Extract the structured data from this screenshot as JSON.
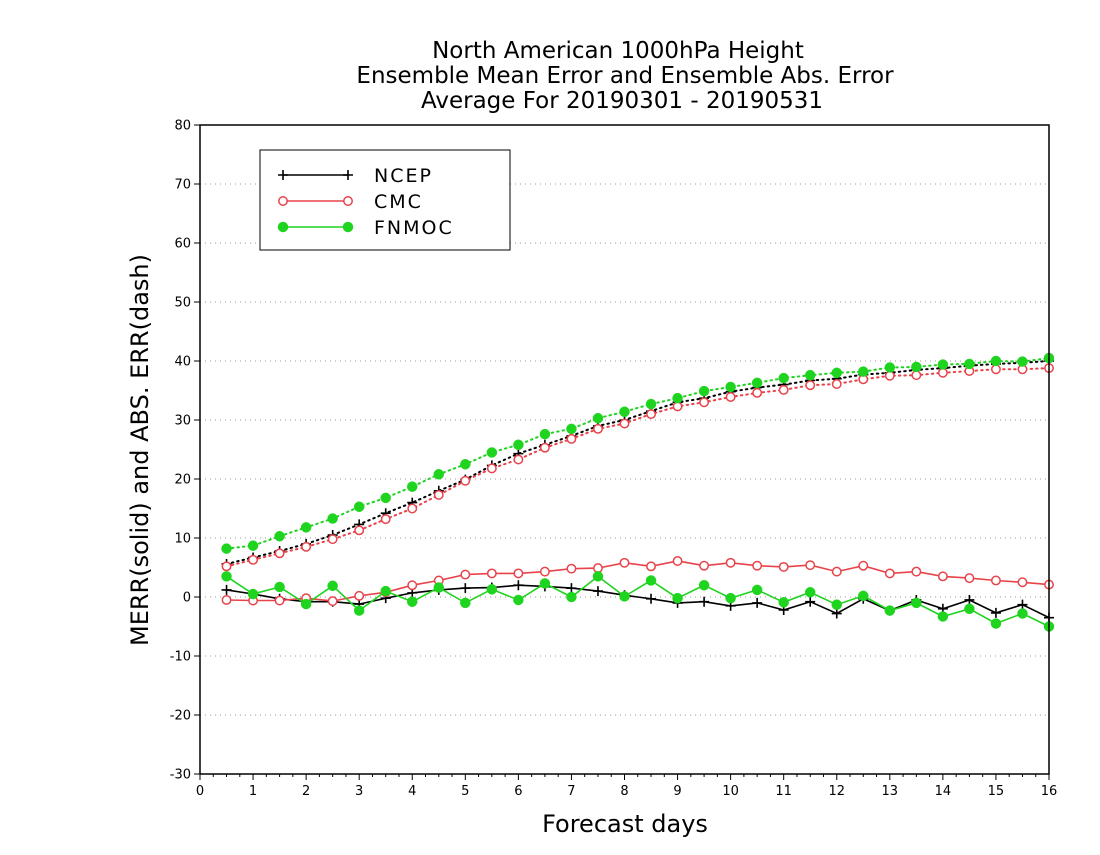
{
  "chart_data": {
    "type": "line",
    "title": [
      "North American 1000hPa Height",
      "Ensemble Mean Error and Ensemble Abs. Error",
      "Average For 20190301 - 20190531"
    ],
    "xlabel": "Forecast days",
    "ylabel": "MERR(solid) and ABS. ERR(dash)",
    "xlim": [
      0,
      16
    ],
    "ylim": [
      -30,
      80
    ],
    "xticks": [
      "0",
      "1",
      "2",
      "3",
      "4",
      "5",
      "6",
      "7",
      "8",
      "9",
      "10",
      "11",
      "12",
      "13",
      "14",
      "15",
      "16"
    ],
    "yticks": [
      "-30",
      "-20",
      "-10",
      "0",
      "10",
      "20",
      "30",
      "40",
      "50",
      "60",
      "70",
      "80"
    ],
    "grid": "horizontal dotted",
    "legend": {
      "placement": "top-left",
      "entries": [
        {
          "name": "NCEP",
          "color": "#000000",
          "marker": "plus"
        },
        {
          "name": "CMC",
          "color": "#e8434a",
          "marker": "open-circle"
        },
        {
          "name": "FNMOC",
          "color": "#1ed41e",
          "marker": "filled-circle"
        }
      ]
    },
    "x": [
      0.5,
      1,
      1.5,
      2,
      2.5,
      3,
      3.5,
      4,
      4.5,
      5,
      5.5,
      6,
      6.5,
      7,
      7.5,
      8,
      8.5,
      9,
      9.5,
      10,
      10.5,
      11,
      11.5,
      12,
      12.5,
      13,
      13.5,
      14,
      14.5,
      15,
      15.5,
      16
    ],
    "series": [
      {
        "name": "NCEP",
        "style": "solid",
        "color": "#000000",
        "marker": "plus",
        "values": [
          1.2,
          0.5,
          -0.3,
          -0.8,
          -0.8,
          -1.2,
          -0.2,
          0.7,
          1.2,
          1.5,
          1.6,
          2.0,
          1.8,
          1.5,
          1.0,
          0.3,
          -0.3,
          -1.0,
          -0.8,
          -1.5,
          -1.0,
          -2.2,
          -0.8,
          -2.8,
          -0.3,
          -2.3,
          -0.5,
          -2.0,
          -0.5,
          -2.7,
          -1.3,
          -3.5
        ]
      },
      {
        "name": "NCEP",
        "style": "dotted",
        "color": "#000000",
        "marker": "plus",
        "values": [
          5.6,
          6.7,
          7.8,
          9.0,
          10.5,
          12.3,
          14.2,
          16.0,
          18.0,
          19.9,
          22.3,
          24.3,
          25.8,
          27.3,
          29.0,
          30.0,
          31.5,
          33.0,
          33.7,
          34.8,
          35.5,
          36.0,
          36.7,
          37.0,
          37.7,
          38.0,
          38.5,
          38.8,
          39.2,
          39.5,
          39.7,
          40.0
        ]
      },
      {
        "name": "CMC",
        "style": "solid",
        "color": "#e8434a",
        "marker": "open-circle",
        "values": [
          -0.5,
          -0.6,
          -0.6,
          -0.2,
          -0.7,
          0.2,
          0.8,
          2.0,
          2.8,
          3.8,
          4.0,
          4.0,
          4.3,
          4.8,
          4.9,
          5.8,
          5.2,
          6.1,
          5.3,
          5.8,
          5.3,
          5.1,
          5.4,
          4.3,
          5.3,
          4.0,
          4.3,
          3.5,
          3.2,
          2.8,
          2.5,
          2.1
        ]
      },
      {
        "name": "CMC",
        "style": "dotted",
        "color": "#e8434a",
        "marker": "open-circle",
        "values": [
          5.2,
          6.3,
          7.4,
          8.5,
          9.8,
          11.3,
          13.2,
          15.0,
          17.3,
          19.7,
          21.8,
          23.3,
          25.3,
          26.8,
          28.5,
          29.4,
          31.0,
          32.3,
          33.0,
          33.9,
          34.6,
          35.1,
          35.9,
          36.1,
          36.9,
          37.5,
          37.6,
          38.0,
          38.3,
          38.6,
          38.6,
          38.8
        ]
      },
      {
        "name": "FNMOC",
        "style": "solid",
        "color": "#1ed41e",
        "marker": "filled-circle",
        "values": [
          3.5,
          0.5,
          1.7,
          -1.2,
          1.9,
          -2.3,
          1.0,
          -0.8,
          1.6,
          -1.0,
          1.3,
          -0.5,
          2.3,
          0.0,
          3.5,
          0.1,
          2.8,
          -0.2,
          2.0,
          -0.2,
          1.2,
          -0.9,
          0.8,
          -1.3,
          0.2,
          -2.3,
          -1.0,
          -3.3,
          -2.0,
          -4.5,
          -2.8,
          -5.0
        ]
      },
      {
        "name": "FNMOC",
        "style": "dotted",
        "color": "#1ed41e",
        "marker": "filled-circle",
        "values": [
          8.2,
          8.7,
          10.3,
          11.8,
          13.3,
          15.3,
          16.8,
          18.7,
          20.8,
          22.5,
          24.5,
          25.8,
          27.6,
          28.5,
          30.3,
          31.4,
          32.7,
          33.7,
          34.9,
          35.6,
          36.3,
          37.1,
          37.6,
          38.0,
          38.2,
          38.9,
          39.0,
          39.4,
          39.5,
          40.0,
          39.9,
          40.5
        ]
      }
    ]
  }
}
